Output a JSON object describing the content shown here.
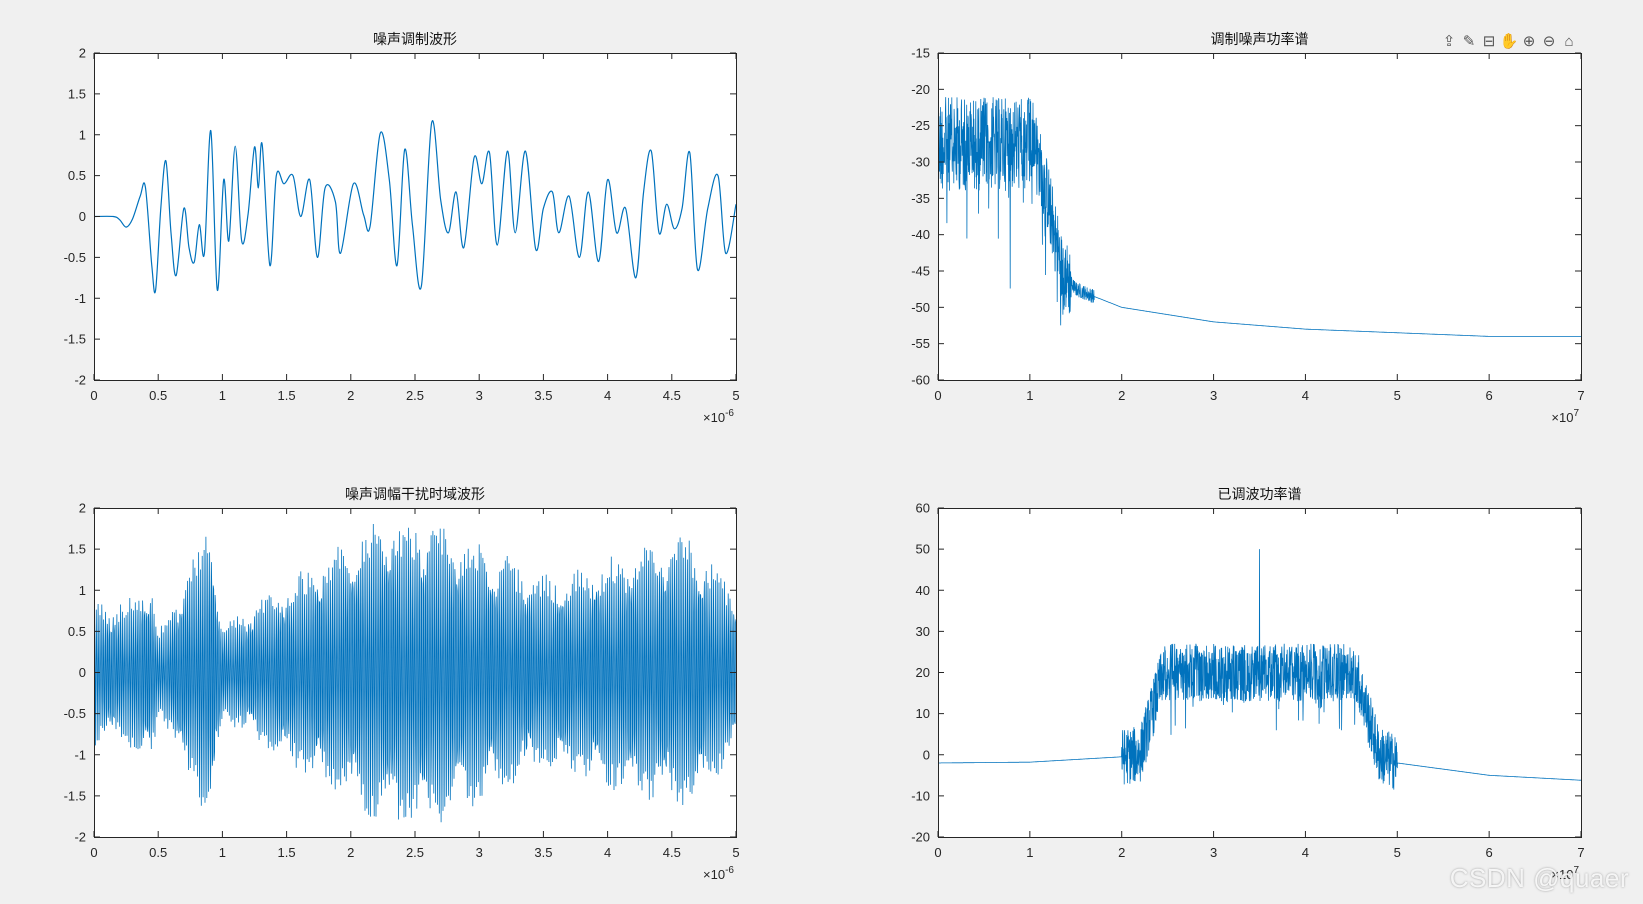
{
  "theme": {
    "background": "#f0f0f0",
    "axes_bg": "#ffffff",
    "line_color": "#0072bd",
    "axis_color": "#262626"
  },
  "toolbar": {
    "icons": [
      "export-icon",
      "brush-icon",
      "datatip-icon",
      "pan-icon",
      "zoom-in-icon",
      "zoom-out-icon",
      "home-icon"
    ]
  },
  "watermark": "CSDN @quaer",
  "chart_data": [
    {
      "type": "line",
      "title": "噪声调制波形",
      "xlim": [
        0,
        5
      ],
      "ylim": [
        -2,
        2
      ],
      "xticks": [
        "0",
        "0.5",
        "1",
        "1.5",
        "2",
        "2.5",
        "3",
        "3.5",
        "4",
        "4.5",
        "5"
      ],
      "yticks": [
        "-2",
        "-1.5",
        "-1",
        "-0.5",
        "0",
        "0.5",
        "1",
        "1.5",
        "2"
      ],
      "x_exponent": "-6",
      "series": [
        {
          "points": [
            [
              0,
              0
            ],
            [
              0.15,
              0
            ],
            [
              0.2,
              -0.04
            ],
            [
              0.25,
              -0.13
            ],
            [
              0.3,
              -0.03
            ],
            [
              0.36,
              0.25
            ],
            [
              0.4,
              0.36
            ],
            [
              0.45,
              -0.6
            ],
            [
              0.48,
              -0.9
            ],
            [
              0.52,
              0.1
            ],
            [
              0.56,
              0.68
            ],
            [
              0.6,
              -0.2
            ],
            [
              0.64,
              -0.72
            ],
            [
              0.7,
              0.1
            ],
            [
              0.74,
              -0.38
            ],
            [
              0.78,
              -0.56
            ],
            [
              0.82,
              -0.1
            ],
            [
              0.86,
              -0.45
            ],
            [
              0.91,
              1.05
            ],
            [
              0.96,
              -0.9
            ],
            [
              1.01,
              0.45
            ],
            [
              1.05,
              -0.3
            ],
            [
              1.1,
              0.86
            ],
            [
              1.15,
              -0.3
            ],
            [
              1.2,
              0.03
            ],
            [
              1.25,
              0.85
            ],
            [
              1.28,
              0.35
            ],
            [
              1.31,
              0.88
            ],
            [
              1.37,
              -0.6
            ],
            [
              1.42,
              0.5
            ],
            [
              1.48,
              0.4
            ],
            [
              1.55,
              0.5
            ],
            [
              1.61,
              0
            ],
            [
              1.68,
              0.45
            ],
            [
              1.74,
              -0.5
            ],
            [
              1.8,
              0.35
            ],
            [
              1.88,
              0.18
            ],
            [
              1.92,
              -0.45
            ],
            [
              2.02,
              0.4
            ],
            [
              2.1,
              0.02
            ],
            [
              2.15,
              -0.12
            ],
            [
              2.23,
              1.02
            ],
            [
              2.3,
              0.45
            ],
            [
              2.36,
              -0.6
            ],
            [
              2.42,
              0.82
            ],
            [
              2.48,
              -0.1
            ],
            [
              2.55,
              -0.85
            ],
            [
              2.63,
              1.15
            ],
            [
              2.7,
              0.2
            ],
            [
              2.76,
              -0.2
            ],
            [
              2.82,
              0.3
            ],
            [
              2.88,
              -0.38
            ],
            [
              2.96,
              0.72
            ],
            [
              3.02,
              0.4
            ],
            [
              3.08,
              0.78
            ],
            [
              3.14,
              -0.35
            ],
            [
              3.22,
              0.8
            ],
            [
              3.28,
              -0.2
            ],
            [
              3.36,
              0.8
            ],
            [
              3.44,
              -0.4
            ],
            [
              3.5,
              0.1
            ],
            [
              3.57,
              0.3
            ],
            [
              3.62,
              -0.2
            ],
            [
              3.7,
              0.25
            ],
            [
              3.78,
              -0.5
            ],
            [
              3.85,
              0.3
            ],
            [
              3.93,
              -0.55
            ],
            [
              4.0,
              0.45
            ],
            [
              4.07,
              -0.2
            ],
            [
              4.14,
              0.1
            ],
            [
              4.22,
              -0.75
            ],
            [
              4.28,
              0.3
            ],
            [
              4.34,
              0.8
            ],
            [
              4.4,
              -0.2
            ],
            [
              4.46,
              0.15
            ],
            [
              4.52,
              -0.15
            ],
            [
              4.58,
              0.1
            ],
            [
              4.64,
              0.78
            ],
            [
              4.7,
              -0.65
            ],
            [
              4.78,
              0.1
            ],
            [
              4.86,
              0.5
            ],
            [
              4.92,
              -0.45
            ],
            [
              5.0,
              0.15
            ]
          ]
        }
      ]
    },
    {
      "type": "line",
      "title": "调制噪声功率谱",
      "xlim": [
        0,
        7
      ],
      "ylim": [
        -60,
        -15
      ],
      "xticks": [
        "0",
        "1",
        "2",
        "3",
        "4",
        "5",
        "6",
        "7"
      ],
      "yticks": [
        "-60",
        "-55",
        "-50",
        "-45",
        "-40",
        "-35",
        "-30",
        "-25",
        "-20",
        "-15"
      ],
      "x_exponent": "7",
      "series": [
        {
          "points": [
            [
              0,
              -25
            ],
            [
              0.5,
              -25
            ],
            [
              1.0,
              -25
            ],
            [
              1.2,
              -35
            ],
            [
              1.35,
              -45
            ],
            [
              1.5,
              -47.5
            ],
            [
              2,
              -50
            ],
            [
              3,
              -52
            ],
            [
              4,
              -53
            ],
            [
              5,
              -53.5
            ],
            [
              6,
              -54
            ],
            [
              7,
              -54
            ]
          ]
        }
      ]
    },
    {
      "type": "line",
      "title": "噪声调幅干扰时域波形",
      "xlim": [
        0,
        5
      ],
      "ylim": [
        -2,
        2
      ],
      "xticks": [
        "0",
        "0.5",
        "1",
        "1.5",
        "2",
        "2.5",
        "3",
        "3.5",
        "4",
        "4.5",
        "5"
      ],
      "yticks": [
        "-2",
        "-1.5",
        "-1",
        "-0.5",
        "0",
        "0.5",
        "1",
        "1.5",
        "2"
      ],
      "x_exponent": "-6",
      "series": [
        {
          "points": [
            [
              0,
              0.9
            ],
            [
              0.25,
              0.9
            ],
            [
              0.45,
              1.2
            ],
            [
              0.5,
              0.5
            ],
            [
              0.91,
              1.9
            ],
            [
              1.0,
              0.6
            ],
            [
              2.23,
              1.9
            ],
            [
              2.63,
              1.9
            ],
            [
              3.5,
              1.2
            ],
            [
              4.64,
              1.7
            ],
            [
              5.0,
              1.0
            ]
          ]
        }
      ]
    },
    {
      "type": "line",
      "title": "已调波功率谱",
      "xlim": [
        0,
        7
      ],
      "ylim": [
        -20,
        60
      ],
      "xticks": [
        "0",
        "1",
        "2",
        "3",
        "4",
        "5",
        "6",
        "7"
      ],
      "yticks": [
        "-20",
        "-10",
        "0",
        "10",
        "20",
        "30",
        "40",
        "50",
        "60"
      ],
      "x_exponent": "7",
      "series": [
        {
          "points": [
            [
              0,
              -2
            ],
            [
              1,
              -1.8
            ],
            [
              2,
              -0.5
            ],
            [
              2.2,
              0
            ],
            [
              2.5,
              24
            ],
            [
              3.5,
              24
            ],
            [
              3.5,
              50
            ],
            [
              3.5,
              24
            ],
            [
              4.5,
              24
            ],
            [
              4.8,
              0
            ],
            [
              5,
              -2
            ],
            [
              6,
              -5
            ],
            [
              7,
              -6.2
            ]
          ]
        }
      ]
    }
  ]
}
